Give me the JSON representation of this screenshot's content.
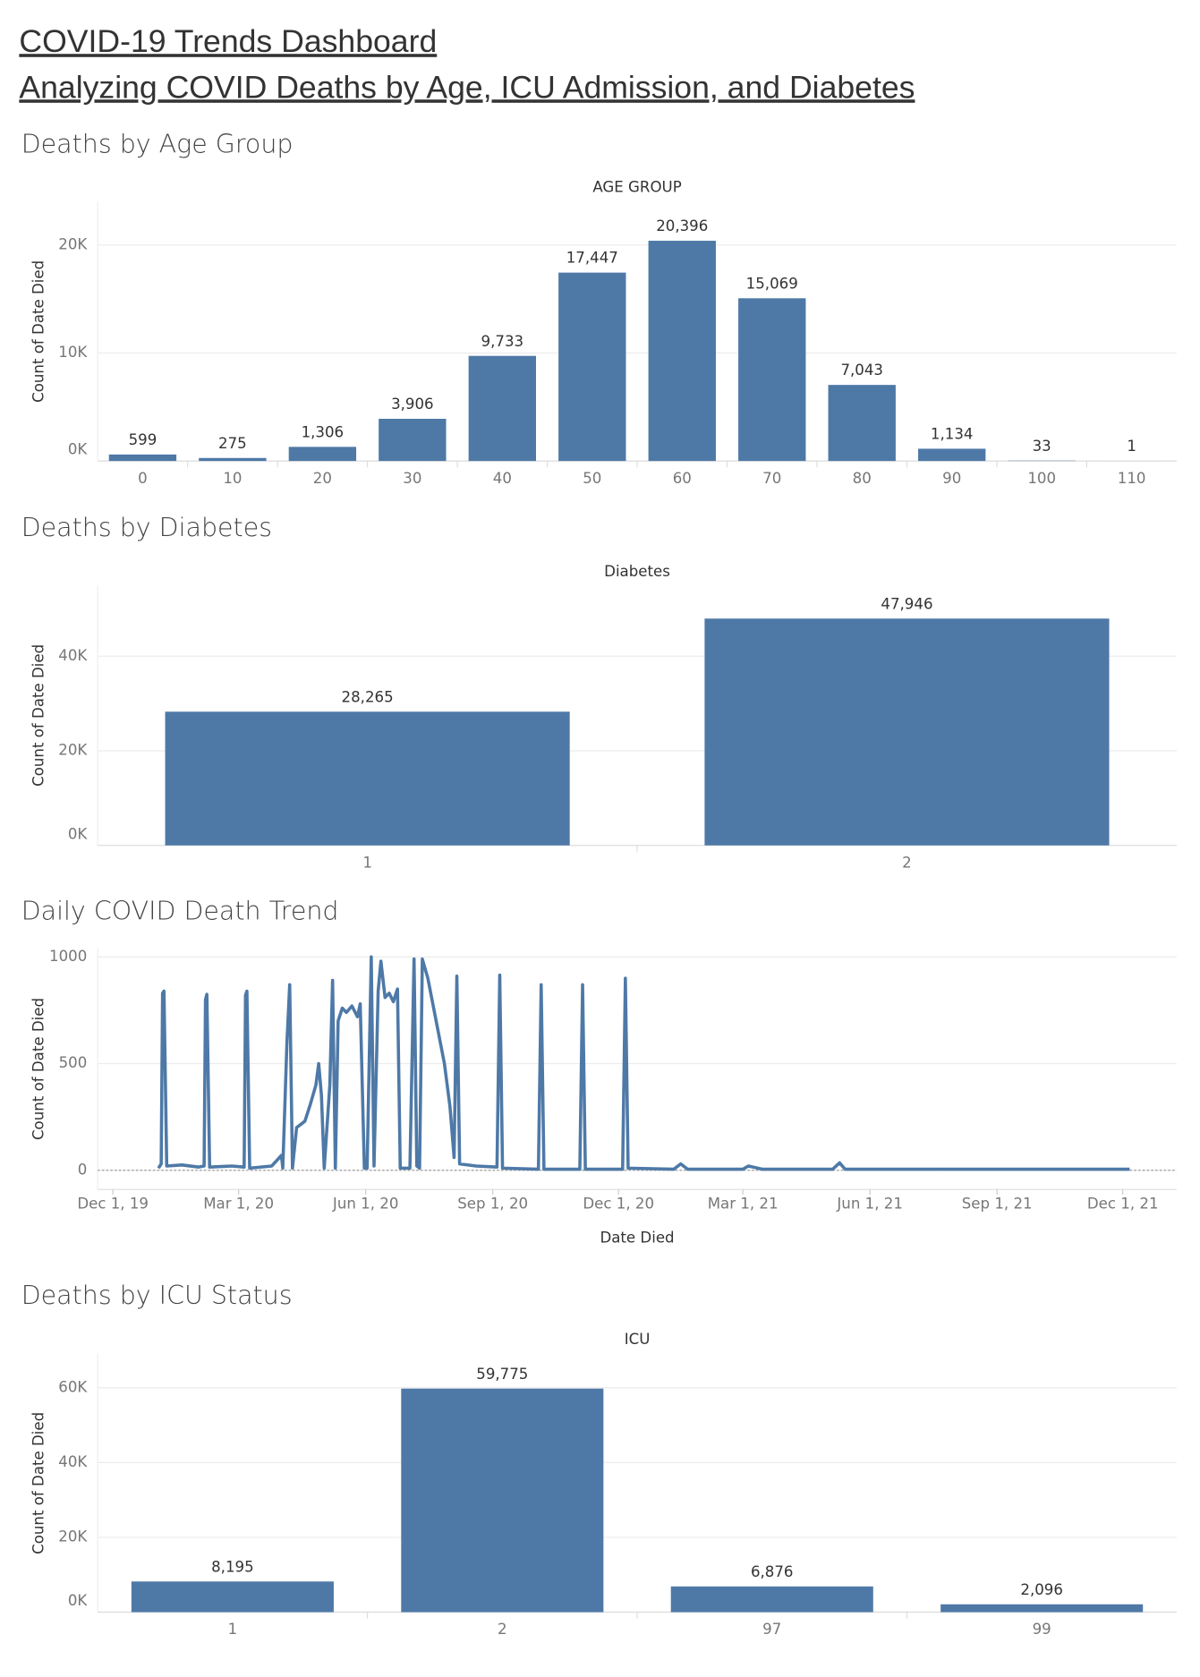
{
  "header": {
    "title": "COVID-19 Trends Dashboard",
    "subtitle": "Analyzing COVID Deaths by Age, ICU Admission, and Diabetes"
  },
  "chart_data": [
    {
      "type": "bar",
      "title": "Deaths by Age Group",
      "x_label": "AGE GROUP",
      "y_label": "Count of Date Died",
      "categories": [
        "0",
        "10",
        "20",
        "30",
        "40",
        "50",
        "60",
        "70",
        "80",
        "90",
        "100",
        "110"
      ],
      "values": [
        599,
        275,
        1306,
        3906,
        9733,
        17447,
        20396,
        15069,
        7043,
        1134,
        33,
        1
      ],
      "value_labels": [
        "599",
        "275",
        "1,306",
        "3,906",
        "9,733",
        "17,447",
        "20,396",
        "15,069",
        "7,043",
        "1,134",
        "33",
        "1"
      ],
      "color": "#4e79a7",
      "ylim": [
        0,
        24000
      ],
      "yticks": [
        {
          "value": 0,
          "label": "0K"
        },
        {
          "value": 10000,
          "label": "10K"
        },
        {
          "value": 20000,
          "label": "20K"
        }
      ],
      "grid": true
    },
    {
      "type": "bar",
      "title": "Deaths by Diabetes",
      "x_label": "Diabetes",
      "y_label": "Count of Date Died",
      "categories": [
        "1",
        "2"
      ],
      "values": [
        28265,
        47946
      ],
      "value_labels": [
        "28,265",
        "47,946"
      ],
      "color": "#4e79a7",
      "ylim": [
        0,
        55000
      ],
      "yticks": [
        {
          "value": 0,
          "label": "0K"
        },
        {
          "value": 20000,
          "label": "20K"
        },
        {
          "value": 40000,
          "label": "40K"
        }
      ],
      "grid": true
    },
    {
      "type": "line",
      "title": "Daily COVID Death Trend",
      "x_label": "Date Died",
      "y_label": "Count of Date Died",
      "x": [
        "2020-01-03",
        "2020-01-05",
        "2020-01-06",
        "2020-01-07",
        "2020-01-09",
        "2020-01-20",
        "2020-02-01",
        "2020-02-05",
        "2020-02-06",
        "2020-02-07",
        "2020-02-09",
        "2020-02-25",
        "2020-03-05",
        "2020-03-06",
        "2020-03-07",
        "2020-03-09",
        "2020-03-25",
        "2020-04-01",
        "2020-04-02",
        "2020-04-05",
        "2020-04-07",
        "2020-04-09",
        "2020-04-12",
        "2020-04-18",
        "2020-04-22",
        "2020-04-26",
        "2020-04-28",
        "2020-04-30",
        "2020-05-02",
        "2020-05-06",
        "2020-05-08",
        "2020-05-10",
        "2020-05-12",
        "2020-05-15",
        "2020-05-18",
        "2020-05-22",
        "2020-05-26",
        "2020-05-28",
        "2020-05-31",
        "2020-06-02",
        "2020-06-05",
        "2020-06-07",
        "2020-06-10",
        "2020-06-12",
        "2020-06-15",
        "2020-06-18",
        "2020-06-21",
        "2020-06-24",
        "2020-06-26",
        "2020-07-03",
        "2020-07-06",
        "2020-07-08",
        "2020-07-10",
        "2020-07-12",
        "2020-07-16",
        "2020-07-22",
        "2020-07-28",
        "2020-08-01",
        "2020-08-04",
        "2020-08-06",
        "2020-08-08",
        "2020-08-20",
        "2020-09-04",
        "2020-09-06",
        "2020-09-08",
        "2020-10-04",
        "2020-10-06",
        "2020-10-08",
        "2020-11-03",
        "2020-11-05",
        "2020-11-07",
        "2020-12-04",
        "2020-12-06",
        "2020-12-08",
        "2021-01-10",
        "2021-01-15",
        "2021-01-20",
        "2021-03-01",
        "2021-03-05",
        "2021-03-15",
        "2021-05-05",
        "2021-05-10",
        "2021-05-14",
        "2021-12-06"
      ],
      "values": [
        10,
        30,
        830,
        840,
        20,
        25,
        15,
        20,
        800,
        825,
        15,
        20,
        15,
        820,
        840,
        10,
        20,
        70,
        10,
        600,
        870,
        10,
        200,
        230,
        310,
        400,
        500,
        350,
        10,
        400,
        890,
        10,
        700,
        760,
        740,
        770,
        720,
        780,
        10,
        10,
        1000,
        20,
        840,
        980,
        810,
        830,
        790,
        850,
        10,
        10,
        990,
        20,
        10,
        990,
        900,
        700,
        500,
        300,
        60,
        910,
        30,
        20,
        15,
        915,
        10,
        5,
        870,
        5,
        5,
        870,
        5,
        5,
        900,
        10,
        5,
        30,
        5,
        5,
        20,
        5,
        5,
        35,
        5,
        5
      ],
      "color": "#4e79a7",
      "ylim": [
        -90,
        1040
      ],
      "yticks": [
        0,
        500,
        1000
      ],
      "xlim": [
        "2019-11-20",
        "2022-01-09"
      ],
      "xticks": [
        {
          "value": "2019-12-01",
          "label": "Dec 1, 19"
        },
        {
          "value": "2020-03-01",
          "label": "Mar 1, 20"
        },
        {
          "value": "2020-06-01",
          "label": "Jun 1, 20"
        },
        {
          "value": "2020-09-01",
          "label": "Sep 1, 20"
        },
        {
          "value": "2020-12-01",
          "label": "Dec 1, 20"
        },
        {
          "value": "2021-03-01",
          "label": "Mar 1, 21"
        },
        {
          "value": "2021-06-01",
          "label": "Jun 1, 21"
        },
        {
          "value": "2021-09-01",
          "label": "Sep 1, 21"
        },
        {
          "value": "2021-12-01",
          "label": "Dec 1, 21"
        }
      ],
      "grid": true
    },
    {
      "type": "bar",
      "title": "Deaths by ICU Status",
      "x_label": "ICU",
      "y_label": "Count of Date Died",
      "categories": [
        "1",
        "2",
        "97",
        "99"
      ],
      "values": [
        8195,
        59775,
        6876,
        2096
      ],
      "value_labels": [
        "8,195",
        "59,775",
        "6,876",
        "2,096"
      ],
      "color": "#4e79a7",
      "ylim": [
        0,
        69000
      ],
      "yticks": [
        {
          "value": 0,
          "label": "0K"
        },
        {
          "value": 20000,
          "label": "20K"
        },
        {
          "value": 40000,
          "label": "40K"
        },
        {
          "value": 60000,
          "label": "60K"
        }
      ],
      "grid": true
    }
  ]
}
